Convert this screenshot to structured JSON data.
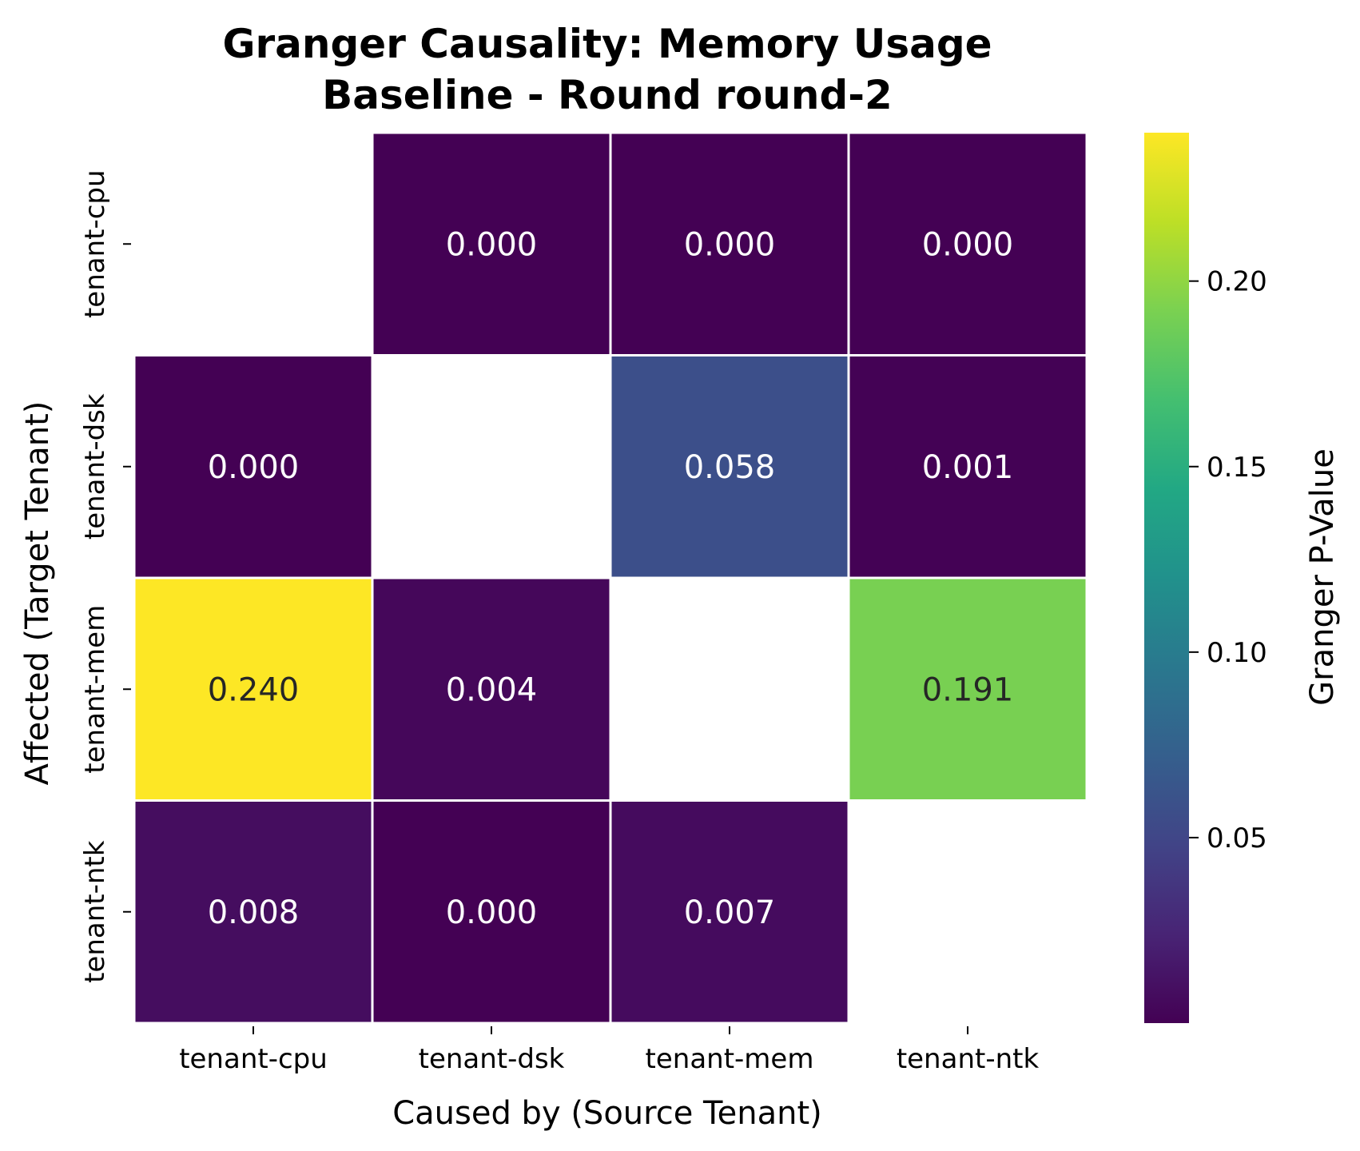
{
  "chart_data": {
    "type": "heatmap",
    "title": [
      "Granger Causality: Memory Usage",
      "Baseline - Round round-2"
    ],
    "xlabel": "Caused by (Source Tenant)",
    "ylabel": "Affected (Target Tenant)",
    "x_categories": [
      "tenant-cpu",
      "tenant-dsk",
      "tenant-mem",
      "tenant-ntk"
    ],
    "y_categories": [
      "tenant-cpu",
      "tenant-dsk",
      "tenant-mem",
      "tenant-ntk"
    ],
    "values": [
      [
        null,
        0.0,
        0.0,
        0.0
      ],
      [
        0.0,
        null,
        0.058,
        0.001
      ],
      [
        0.24,
        0.004,
        null,
        0.191
      ],
      [
        0.008,
        0.0,
        0.007,
        null
      ]
    ],
    "value_format": "3 decimals",
    "colormap": "viridis",
    "colorbar": {
      "label": "Granger P-Value",
      "range": [
        0.0,
        0.24
      ],
      "ticks": [
        0.05,
        0.1,
        0.15,
        0.2
      ],
      "tick_labels": [
        "0.05",
        "0.10",
        "0.15",
        "0.20"
      ]
    }
  }
}
